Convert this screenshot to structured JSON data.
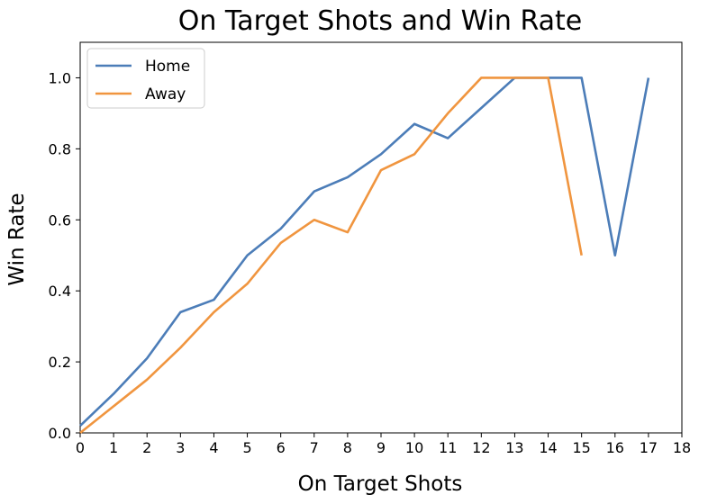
{
  "chart_data": {
    "type": "line",
    "title": "On Target Shots and Win Rate",
    "xlabel": "On Target Shots",
    "ylabel": "Win Rate",
    "xlim": [
      0,
      18
    ],
    "ylim": [
      0,
      1.1
    ],
    "xticks": [
      0,
      1,
      2,
      3,
      4,
      5,
      6,
      7,
      8,
      9,
      10,
      11,
      12,
      13,
      14,
      15,
      16,
      17,
      18
    ],
    "yticks": [
      "0.0",
      "0.2",
      "0.4",
      "0.6",
      "0.8",
      "1.0"
    ],
    "grid": false,
    "legend_position": "top-left",
    "series": [
      {
        "name": "Home",
        "color": "#4C7DB8",
        "x": [
          0,
          1,
          2,
          3,
          4,
          5,
          6,
          7,
          8,
          9,
          10,
          11,
          12,
          13,
          14,
          15,
          16,
          17
        ],
        "y": [
          0.02,
          0.11,
          0.21,
          0.34,
          0.375,
          0.5,
          0.575,
          0.68,
          0.72,
          0.785,
          0.87,
          0.83,
          0.915,
          1.0,
          1.0,
          1.0,
          0.5,
          1.0
        ]
      },
      {
        "name": "Away",
        "color": "#F0953F",
        "x": [
          0,
          1,
          2,
          3,
          4,
          5,
          6,
          7,
          8,
          9,
          10,
          11,
          12,
          13,
          14,
          15
        ],
        "y": [
          0.0,
          0.075,
          0.15,
          0.24,
          0.34,
          0.42,
          0.535,
          0.6,
          0.565,
          0.74,
          0.785,
          0.9,
          1.0,
          1.0,
          1.0,
          0.5
        ]
      }
    ]
  }
}
